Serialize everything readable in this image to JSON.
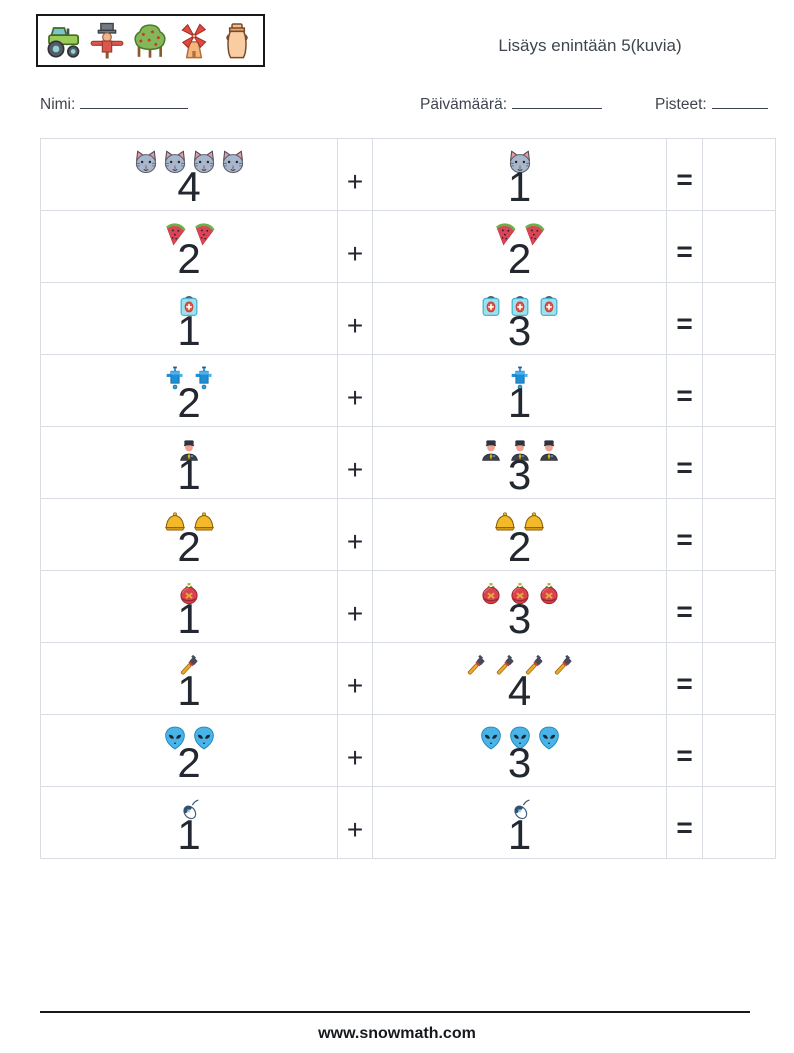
{
  "header": {
    "icons": [
      "tractor",
      "scarecrow",
      "tree",
      "windmill",
      "milk-can"
    ],
    "title": "Lisäys enintään 5(kuvia)"
  },
  "fields": {
    "name_label": "Nimi:",
    "date_label": "Päivämäärä:",
    "points_label": "Pisteet:"
  },
  "table": {
    "plus": "+",
    "equals": "=",
    "rows": [
      {
        "icon": "cat",
        "a": 4,
        "b": 1
      },
      {
        "icon": "watermelon",
        "a": 2,
        "b": 2
      },
      {
        "icon": "first-aid-kit",
        "a": 1,
        "b": 3
      },
      {
        "icon": "faucet",
        "a": 2,
        "b": 1
      },
      {
        "icon": "officer",
        "a": 1,
        "b": 3
      },
      {
        "icon": "bell",
        "a": 2,
        "b": 2
      },
      {
        "icon": "ornament",
        "a": 1,
        "b": 3
      },
      {
        "icon": "pipe-wrench",
        "a": 1,
        "b": 4
      },
      {
        "icon": "alien",
        "a": 2,
        "b": 3
      },
      {
        "icon": "computer-mouse",
        "a": 1,
        "b": 1
      }
    ]
  },
  "footer": {
    "url": "www.snowmath.com"
  },
  "colors": {
    "grid": "#d9dce2",
    "ink": "#23272f",
    "label": "#3f454e",
    "border": "#15181d"
  }
}
